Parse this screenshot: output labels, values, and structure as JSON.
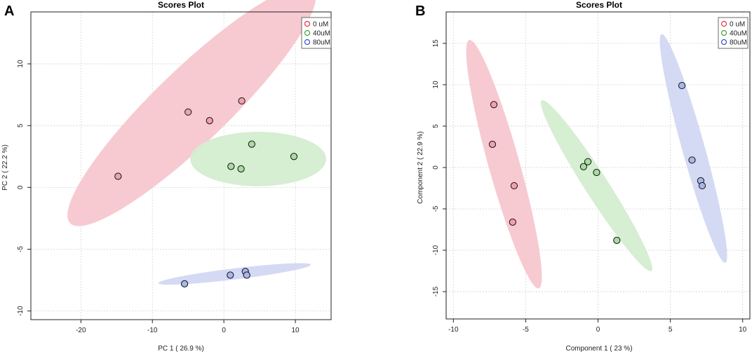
{
  "chart_data": [
    {
      "panel": "A",
      "type": "scatter",
      "title": "Scores Plot",
      "xlabel": "PC 1 ( 26.9 %)",
      "ylabel": "PC 2 ( 22.2 %)",
      "xlim": [
        -27,
        15
      ],
      "ylim": [
        -10.7,
        14.2
      ],
      "xticks": [
        -20,
        -10,
        0,
        10
      ],
      "yticks": [
        -10,
        -5,
        0,
        5,
        10
      ],
      "grid": true,
      "legend_position": "top-right",
      "series": [
        {
          "name": "0 uM",
          "color": "#e8334a",
          "fill": "#f0a0ae",
          "ellipse_fill": "#f7c7cf",
          "points": [
            [
              -14.8,
              0.9
            ],
            [
              -5,
              6.1
            ],
            [
              -2,
              5.4
            ],
            [
              2.5,
              7
            ]
          ],
          "ellipse": {
            "cx": -4.5,
            "cy": 6.6,
            "rx": 19.6,
            "ry": 3.6,
            "angle_deg": 28
          }
        },
        {
          "name": "40uM",
          "color": "#3aa63a",
          "fill": "#a8dca0",
          "ellipse_fill": "#d4edd0",
          "points": [
            [
              1,
              1.7
            ],
            [
              2.4,
              1.5
            ],
            [
              3.9,
              3.5
            ],
            [
              9.8,
              2.5
            ]
          ],
          "ellipse": {
            "cx": 4.8,
            "cy": 2.3,
            "rx": 9.5,
            "ry": 2.2,
            "angle_deg": 0
          }
        },
        {
          "name": "80uM",
          "color": "#3a4ec8",
          "fill": "#a8b6ea",
          "ellipse_fill": "#d2d8f2",
          "points": [
            [
              -5.5,
              -7.8
            ],
            [
              0.9,
              -7.1
            ],
            [
              3,
              -6.8
            ],
            [
              3.2,
              -7.1
            ]
          ],
          "ellipse": {
            "cx": 1.5,
            "cy": -7,
            "rx": 10.7,
            "ry": 0.45,
            "angle_deg": 4
          }
        }
      ]
    },
    {
      "panel": "B",
      "type": "scatter",
      "title": "Scores Plot",
      "xlabel": "Component 1 ( 23 %)",
      "ylabel": "Component 2 ( 22.9 %)",
      "xlim": [
        -10.5,
        10.5
      ],
      "ylim": [
        -18.3,
        18.8
      ],
      "xticks": [
        -10,
        -5,
        0,
        5,
        10
      ],
      "yticks": [
        -15,
        -10,
        -5,
        0,
        5,
        10,
        15
      ],
      "grid": true,
      "legend_position": "top-right",
      "series": [
        {
          "name": "0 uM",
          "color": "#e8334a",
          "fill": "#f0a0ae",
          "ellipse_fill": "#f7c7cf",
          "points": [
            [
              -7.2,
              7.6
            ],
            [
              -7.3,
              2.8
            ],
            [
              -5.8,
              -2.2
            ],
            [
              -5.9,
              -6.6
            ]
          ],
          "ellipse": {
            "cx": -6.5,
            "cy": 0.4,
            "rx": 15.2,
            "ry": 1.1,
            "angle_deg": -81
          }
        },
        {
          "name": "40uM",
          "color": "#3aa63a",
          "fill": "#a8dca0",
          "ellipse_fill": "#d4edd0",
          "points": [
            [
              -1,
              0.1
            ],
            [
              -0.7,
              0.7
            ],
            [
              -0.1,
              -0.6
            ],
            [
              1.3,
              -8.8
            ]
          ],
          "ellipse": {
            "cx": -0.1,
            "cy": -2.2,
            "rx": 11,
            "ry": 0.9,
            "angle_deg": -70
          }
        },
        {
          "name": "80uM",
          "color": "#3a4ec8",
          "fill": "#a8b6ea",
          "ellipse_fill": "#d2d8f2",
          "points": [
            [
              5.8,
              9.9
            ],
            [
              6.5,
              0.9
            ],
            [
              7.1,
              -1.6
            ],
            [
              7.2,
              -2.2
            ]
          ],
          "ellipse": {
            "cx": 6.6,
            "cy": 2.3,
            "rx": 14,
            "ry": 0.8,
            "angle_deg": -81
          }
        }
      ]
    }
  ]
}
